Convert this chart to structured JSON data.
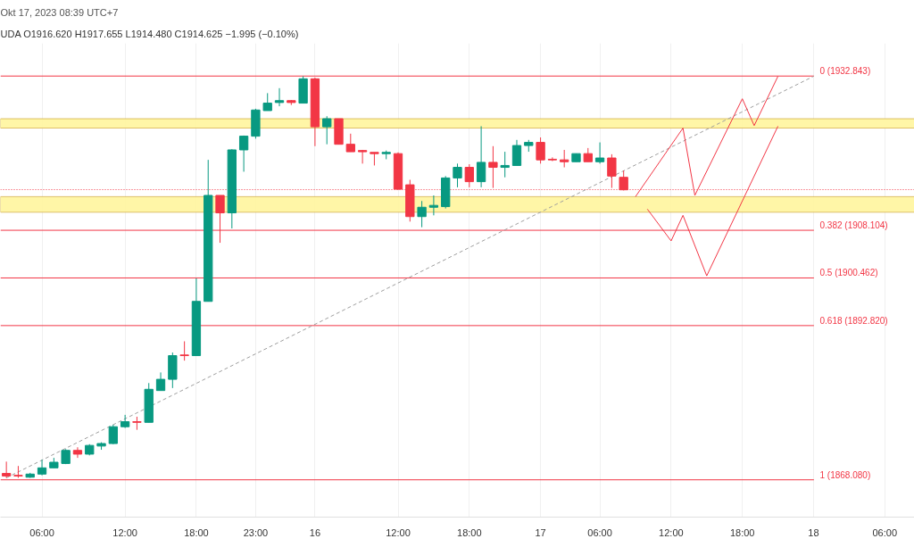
{
  "chart_data": {
    "type": "candlestick",
    "title": "Okt 17, 2023 08:39 UTC+7",
    "subtitle": "UDA O1916.620 H1917.655 L1914.480 C1914.625 −1.995 (−0.10%)",
    "categories": [
      null,
      null,
      null,
      "06:00",
      null,
      null,
      null,
      null,
      null,
      null,
      "12:00",
      null,
      null,
      null,
      null,
      null,
      "18:00",
      null,
      null,
      null,
      null,
      "23:00",
      null,
      null,
      null,
      null,
      "16",
      null,
      null,
      null,
      null,
      null,
      null,
      "12:00",
      null,
      null,
      null,
      null,
      null,
      "18:00",
      null,
      null,
      null,
      null,
      null,
      "17",
      null,
      null,
      null,
      null,
      "06:00",
      null,
      null,
      null,
      null,
      null,
      "12:00",
      null,
      null,
      null,
      null,
      null,
      "18:00",
      null,
      null,
      null,
      null,
      null,
      "18",
      null,
      null,
      null,
      null,
      null,
      "06:00",
      null,
      null
    ],
    "ohlc": [
      [
        1869.1,
        1871.0,
        1868.4,
        1868.7
      ],
      [
        1868.8,
        1870.3,
        1868.4,
        1868.7
      ],
      [
        1868.5,
        1869.2,
        1868.4,
        1869.0
      ],
      [
        1869.0,
        1871.3,
        1868.8,
        1870.0
      ],
      [
        1870.0,
        1871.6,
        1870.0,
        1870.9
      ],
      [
        1870.7,
        1873.0,
        1870.6,
        1872.8
      ],
      [
        1872.8,
        1873.3,
        1871.6,
        1872.2
      ],
      [
        1872.2,
        1873.8,
        1872.0,
        1873.6
      ],
      [
        1873.5,
        1874.1,
        1872.9,
        1873.9
      ],
      [
        1873.9,
        1876.9,
        1873.8,
        1876.6
      ],
      [
        1876.6,
        1878.5,
        1876.4,
        1877.4
      ],
      [
        1877.4,
        1878.2,
        1876.1,
        1877.3
      ],
      [
        1877.3,
        1883.6,
        1877.3,
        1882.6
      ],
      [
        1882.4,
        1885.3,
        1882.4,
        1884.2
      ],
      [
        1884.2,
        1888.5,
        1882.8,
        1888.0
      ],
      [
        1888.1,
        1890.3,
        1887.2,
        1888.0
      ],
      [
        1888.0,
        1900.4,
        1888.0,
        1896.7
      ],
      [
        1896.7,
        1919.4,
        1896.7,
        1913.7
      ],
      [
        1913.7,
        1913.7,
        1906.1,
        1910.9
      ],
      [
        1910.9,
        1921.1,
        1908.4,
        1921.0
      ],
      [
        1921.0,
        1923.3,
        1917.5,
        1923.2
      ],
      [
        1923.2,
        1927.6,
        1922.8,
        1927.4
      ],
      [
        1927.3,
        1930.1,
        1927.3,
        1928.5
      ],
      [
        1928.6,
        1930.9,
        1928.0,
        1928.9
      ],
      [
        1928.9,
        1929.0,
        1928.2,
        1928.6
      ],
      [
        1928.5,
        1932.8,
        1928.5,
        1932.4
      ],
      [
        1932.4,
        1932.6,
        1921.6,
        1924.7
      ],
      [
        1924.7,
        1926.4,
        1921.9,
        1926.0
      ],
      [
        1926.0,
        1926.0,
        1921.9,
        1921.9
      ],
      [
        1921.9,
        1923.6,
        1920.7,
        1920.7
      ],
      [
        1920.9,
        1921.0,
        1918.8,
        1920.7
      ],
      [
        1920.6,
        1920.6,
        1918.5,
        1920.4
      ],
      [
        1920.4,
        1920.9,
        1919.5,
        1920.6
      ],
      [
        1920.4,
        1920.6,
        1914.6,
        1914.7
      ],
      [
        1915.4,
        1916.2,
        1909.5,
        1910.3
      ],
      [
        1910.3,
        1912.8,
        1908.6,
        1911.8
      ],
      [
        1911.8,
        1913.7,
        1910.5,
        1912.1
      ],
      [
        1911.9,
        1916.8,
        1911.6,
        1916.5
      ],
      [
        1916.5,
        1918.8,
        1915.0,
        1918.2
      ],
      [
        1918.2,
        1918.7,
        1915.0,
        1915.9
      ],
      [
        1915.9,
        1924.8,
        1915.0,
        1919.0
      ],
      [
        1919.0,
        1921.6,
        1914.9,
        1918.2
      ],
      [
        1918.2,
        1920.7,
        1916.6,
        1918.5
      ],
      [
        1918.5,
        1922.6,
        1918.5,
        1921.7
      ],
      [
        1921.7,
        1922.6,
        1920.7,
        1922.2
      ],
      [
        1922.2,
        1923.0,
        1918.8,
        1919.4
      ],
      [
        1919.5,
        1919.8,
        1919.2,
        1919.4
      ],
      [
        1919.4,
        1921.0,
        1918.2,
        1919.1
      ],
      [
        1919.1,
        1920.4,
        1919.1,
        1920.4
      ],
      [
        1920.4,
        1921.3,
        1919.1,
        1919.1
      ],
      [
        1919.1,
        1922.2,
        1918.8,
        1919.7
      ],
      [
        1919.7,
        1920.3,
        1914.9,
        1916.8
      ],
      [
        1916.6,
        1917.7,
        1914.5,
        1914.6
      ],
      null,
      null,
      null,
      null,
      null,
      null,
      null,
      null,
      null,
      null,
      null,
      null,
      null,
      null,
      null,
      null,
      null,
      null,
      null,
      null,
      null,
      null,
      null,
      null
    ],
    "colors": [
      "#f23645",
      "#f23645",
      "#089981",
      "#089981",
      "#089981",
      "#089981",
      "#f23645",
      "#089981",
      "#089981",
      "#089981",
      "#089981",
      "#f23645",
      "#089981",
      "#089981",
      "#089981",
      "#f23645",
      "#089981",
      "#089981",
      "#f23645",
      "#089981",
      "#089981",
      "#089981",
      "#089981",
      "#089981",
      "#f23645",
      "#089981",
      "#f23645",
      "#089981",
      "#f23645",
      "#f23645",
      "#f23645",
      "#f23645",
      "#089981",
      "#f23645",
      "#f23645",
      "#089981",
      "#089981",
      "#089981",
      "#089981",
      "#f23645",
      "#089981",
      "#f23645",
      "#089981",
      "#089981",
      "#089981",
      "#f23645",
      "#f23645",
      "#f23645",
      "#089981",
      "#f23645",
      "#089981",
      "#f23645",
      "#f23645",
      null,
      null,
      null,
      null,
      null,
      null,
      null,
      null,
      null,
      null,
      null,
      null,
      null,
      null,
      null,
      null,
      null,
      null,
      null,
      null,
      null,
      null,
      null,
      null
    ],
    "series": [
      {
        "type": "line",
        "color": "#9e9e9e",
        "line_style": "dashed",
        "values": [
          1868.4,
          null,
          null,
          null,
          null,
          null,
          null,
          null,
          null,
          null,
          null,
          null,
          null,
          null,
          null,
          null,
          null,
          null,
          null,
          null,
          null,
          null,
          null,
          null,
          null,
          null,
          null,
          null,
          null,
          null,
          null,
          null,
          null,
          null,
          null,
          null,
          null,
          null,
          null,
          null,
          null,
          null,
          null,
          null,
          null,
          null,
          null,
          null,
          null,
          null,
          null,
          null,
          null,
          null,
          null,
          null,
          null,
          null,
          null,
          null,
          null,
          null,
          null,
          null,
          null,
          null,
          null,
          null,
          1932.8,
          null,
          null,
          null,
          null,
          null,
          null,
          null,
          null
        ]
      },
      {
        "type": "line",
        "color": "#f23645",
        "line_style": "solid",
        "values": [
          null,
          null,
          null,
          null,
          null,
          null,
          null,
          null,
          null,
          null,
          null,
          null,
          null,
          null,
          null,
          null,
          null,
          null,
          null,
          null,
          null,
          null,
          null,
          null,
          null,
          null,
          null,
          null,
          null,
          null,
          null,
          null,
          null,
          null,
          null,
          null,
          null,
          null,
          null,
          null,
          null,
          null,
          null,
          null,
          null,
          null,
          null,
          null,
          null,
          null,
          null,
          null,
          null,
          1913.5,
          null,
          null,
          null,
          1924.5,
          1913.7,
          null,
          null,
          null,
          1929.2,
          1924.9,
          null,
          1932.8,
          null,
          null,
          null,
          null,
          null,
          null,
          null,
          null,
          null,
          null,
          null
        ]
      },
      {
        "type": "line",
        "color": "#f23645",
        "line_style": "solid",
        "values": [
          null,
          null,
          null,
          null,
          null,
          null,
          null,
          null,
          null,
          null,
          null,
          null,
          null,
          null,
          null,
          null,
          null,
          null,
          null,
          null,
          null,
          null,
          null,
          null,
          null,
          null,
          null,
          null,
          null,
          null,
          null,
          null,
          null,
          null,
          null,
          null,
          null,
          null,
          null,
          null,
          null,
          null,
          null,
          null,
          null,
          null,
          null,
          null,
          null,
          null,
          null,
          null,
          null,
          null,
          1911.5,
          null,
          1906.4,
          1910.5,
          null,
          1900.8,
          null,
          null,
          null,
          null,
          null,
          1924.8,
          null,
          null,
          null,
          null,
          null,
          null,
          null,
          null,
          null,
          null,
          null
        ]
      }
    ],
    "ylim": [
      1862.1,
      1938.1
    ],
    "tick_labels": "x",
    "grid": "x",
    "ref_lines": [
      {
        "axis": "y",
        "value": 1932.843,
        "label": "0 (1932.843)",
        "color": "#f23645"
      },
      {
        "axis": "y",
        "value": 1908.104,
        "label": "0.382 (1908.104)",
        "color": "#f23645"
      },
      {
        "axis": "y",
        "value": 1900.462,
        "label": "0.5 (1900.462)",
        "color": "#f23645"
      },
      {
        "axis": "y",
        "value": 1892.82,
        "label": "0.618 (1892.820)",
        "color": "#f23645"
      },
      {
        "axis": "y",
        "value": 1868.08,
        "label": "1 (1868.080)",
        "color": "#f23645"
      },
      {
        "axis": "y",
        "value": 1914.625,
        "color": "#f23645",
        "line_style": "dotted"
      }
    ],
    "bands": [
      {
        "axis": "y",
        "from": 1924.5,
        "to": 1926.0,
        "color": "#fff59d"
      },
      {
        "axis": "y",
        "from": 1911.0,
        "to": 1913.5,
        "color": "#fff59d"
      }
    ]
  }
}
